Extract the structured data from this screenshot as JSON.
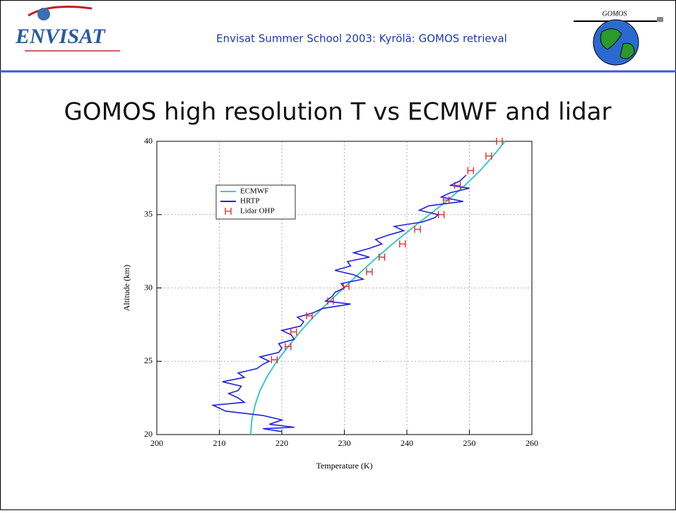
{
  "header": {
    "left_logo": "ENVISAT",
    "title": "Envisat Summer School 2003: Kyrölä: GOMOS retrieval",
    "right_logo": "GOMOS"
  },
  "slide_title": "GOMOS high resolution T vs ECMWF and lidar",
  "chart_data": {
    "type": "line",
    "xlabel": "Temperature (K)",
    "ylabel": "Altitude (km)",
    "xlim": [
      200,
      260
    ],
    "xticks": [
      200,
      210,
      220,
      230,
      240,
      250,
      260
    ],
    "ylim": [
      20,
      40
    ],
    "yticks": [
      20,
      25,
      30,
      35,
      40
    ],
    "grid": true,
    "legend": "upper left",
    "series": [
      {
        "name": "ECMWF",
        "color": "#3cc8c8",
        "mode": "line",
        "x": [
          215,
          215.2,
          215.7,
          216.5,
          217.7,
          219.2,
          221,
          222.9,
          225,
          227.4,
          229.9,
          232.4,
          235,
          237.7,
          240.6,
          243.6,
          246.6,
          249.3,
          251.7,
          253.8,
          255.7
        ],
        "values": [
          20,
          21,
          22,
          23,
          24,
          25,
          26,
          27,
          28,
          29,
          30,
          31,
          32,
          33,
          34,
          35,
          36,
          37,
          38,
          39,
          40
        ]
      },
      {
        "name": "HRTP",
        "color": "#2222dd",
        "mode": "line",
        "x": [
          220,
          217,
          222,
          218,
          220,
          217,
          211,
          209,
          214,
          213,
          211.5,
          213,
          213.5,
          210.5,
          214,
          213,
          216,
          217,
          218,
          216.5,
          219.5,
          220,
          219.5,
          222,
          221.5,
          220,
          223,
          223.5,
          222.5,
          225,
          226.5,
          231,
          227,
          228,
          228.5,
          230,
          229.5,
          233,
          231.5,
          228.5,
          231,
          230.5,
          234,
          231.5,
          234,
          236,
          235,
          237,
          239.5,
          238,
          242.5,
          244.5,
          245,
          242,
          243.5,
          249,
          245.5,
          247,
          250,
          247,
          248.5,
          249.5
        ],
        "values": [
          20.2,
          20.4,
          20.5,
          20.7,
          21,
          21.3,
          21.6,
          22,
          22.2,
          22.5,
          22.8,
          23,
          23.3,
          23.6,
          23.9,
          24.2,
          24.5,
          24.8,
          25,
          25.3,
          25.6,
          25.9,
          26.2,
          26.5,
          26.8,
          27.1,
          27.4,
          27.7,
          28,
          28.3,
          28.6,
          28.9,
          29.1,
          29.4,
          29.7,
          30,
          30.3,
          30.6,
          30.9,
          31.2,
          31.5,
          31.8,
          32.1,
          32.4,
          32.7,
          33,
          33.3,
          33.6,
          33.9,
          34.2,
          34.5,
          34.8,
          35,
          35.3,
          35.6,
          35.9,
          36.2,
          36.5,
          36.8,
          37,
          37.3,
          37.7
        ]
      },
      {
        "name": "Lidar OHP",
        "color": "#e02020",
        "mode": "markers",
        "x": [
          218.8,
          221,
          221.9,
          224.4,
          227.8,
          230.3,
          234,
          236,
          239.3,
          241.7,
          245.5,
          246.3,
          248.1,
          250.2,
          253.1,
          254.8
        ],
        "values": [
          25.1,
          26,
          27,
          28.1,
          29.1,
          30.1,
          31.1,
          32.1,
          33,
          34,
          35,
          36,
          37,
          38,
          39,
          40
        ]
      }
    ]
  }
}
